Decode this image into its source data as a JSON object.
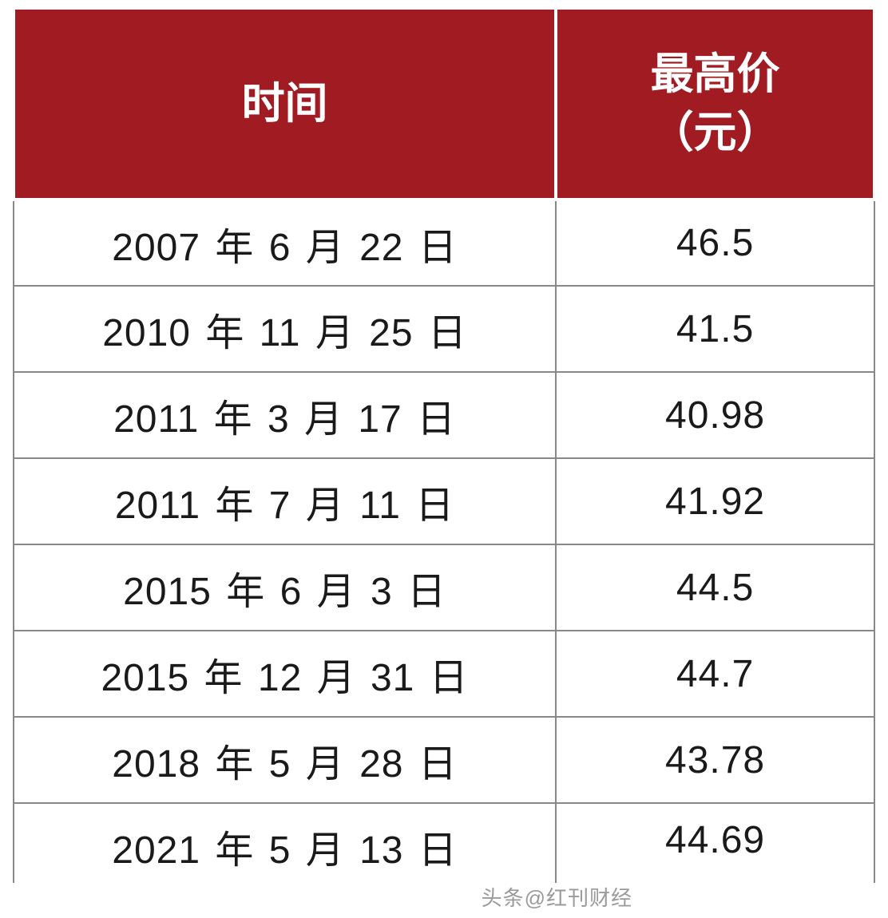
{
  "table": {
    "type": "table",
    "header_bg_color": "#a11b23",
    "header_text_color": "#ffffff",
    "header_fontsize": 54,
    "header_fontweight": 700,
    "cell_fontsize": 48,
    "cell_text_color": "#1a1a1a",
    "border_color": "#888888",
    "background_color": "#ffffff",
    "column_widths": [
      "63%",
      "37%"
    ],
    "columns": [
      {
        "label": "时间",
        "key": "date"
      },
      {
        "label": "最高价\n（元）",
        "key": "price"
      }
    ],
    "rows": [
      {
        "date": "2007 年 6 月 22 日",
        "price": "46.5"
      },
      {
        "date": "2010 年 11 月 25 日",
        "price": "41.5"
      },
      {
        "date": "2011 年 3 月 17 日",
        "price": "40.98"
      },
      {
        "date": "2011 年 7 月 11 日",
        "price": "41.92"
      },
      {
        "date": "2015 年 6 月 3 日",
        "price": "44.5"
      },
      {
        "date": "2015 年 12 月 31 日",
        "price": "44.7"
      },
      {
        "date": "2018 年 5 月 28 日",
        "price": "43.78"
      },
      {
        "date": "2021 年 5 月 13 日",
        "price": "44.69"
      }
    ]
  },
  "attribution": "头条@红刊财经"
}
